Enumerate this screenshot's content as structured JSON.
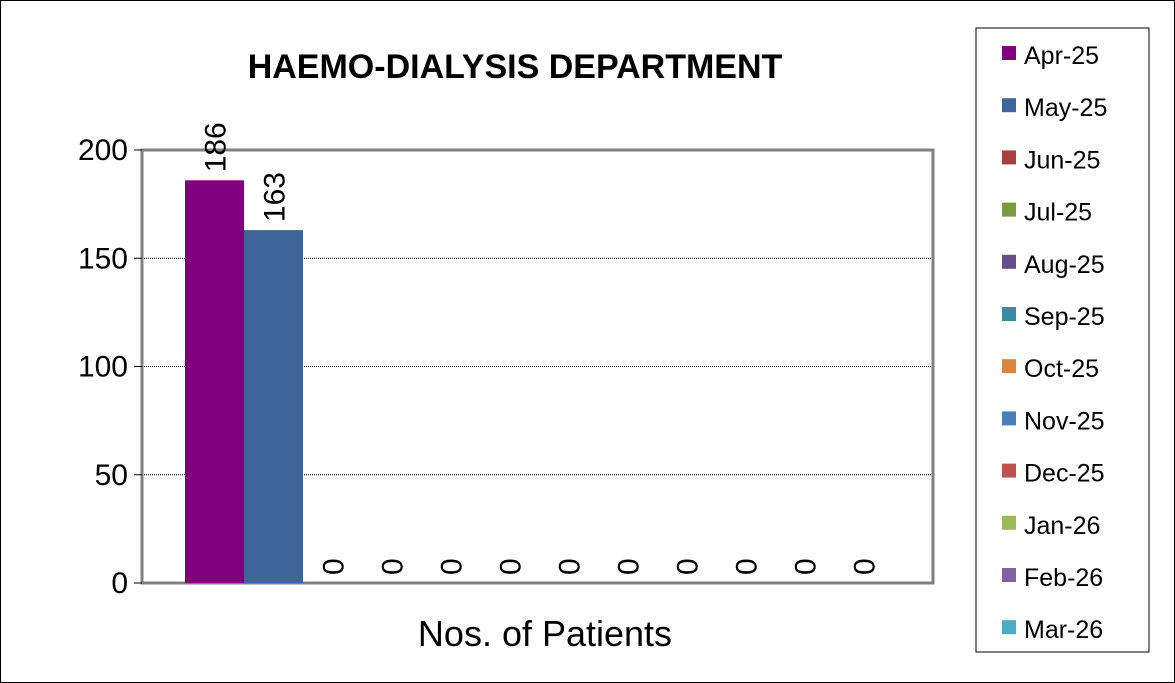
{
  "chart_data": {
    "type": "bar",
    "title": "HAEMO-DIALYSIS DEPARTMENT",
    "categories": [
      "Nos. of Patients"
    ],
    "xlabel": "Nos. of Patients",
    "ylabel": "",
    "ylim": [
      0,
      200
    ],
    "yticks": [
      0,
      50,
      100,
      150,
      200
    ],
    "grid": true,
    "legend_position": "right",
    "series": [
      {
        "name": "Apr-25",
        "values": [
          186
        ],
        "color": "#800080",
        "label": "186"
      },
      {
        "name": "May-25",
        "values": [
          163
        ],
        "color": "#3f6499",
        "label": "163"
      },
      {
        "name": "Jun-25",
        "values": [
          0
        ],
        "color": "#a9403d",
        "label": "0"
      },
      {
        "name": "Jul-25",
        "values": [
          0
        ],
        "color": "#7d9a3e",
        "label": "0"
      },
      {
        "name": "Aug-25",
        "values": [
          0
        ],
        "color": "#664f88",
        "label": "0"
      },
      {
        "name": "Sep-25",
        "values": [
          0
        ],
        "color": "#358ca3",
        "label": "0"
      },
      {
        "name": "Oct-25",
        "values": [
          0
        ],
        "color": "#db843d",
        "label": "0"
      },
      {
        "name": "Nov-25",
        "values": [
          0
        ],
        "color": "#4a7ebb",
        "label": "0"
      },
      {
        "name": "Dec-25",
        "values": [
          0
        ],
        "color": "#c0504d",
        "label": "0"
      },
      {
        "name": "Jan-26",
        "values": [
          0
        ],
        "color": "#9bbb59",
        "label": "0"
      },
      {
        "name": "Feb-26",
        "values": [
          0
        ],
        "color": "#8064a2",
        "label": "0"
      },
      {
        "name": "Mar-26",
        "values": [
          0
        ],
        "color": "#4bacc6",
        "label": "0"
      }
    ]
  }
}
